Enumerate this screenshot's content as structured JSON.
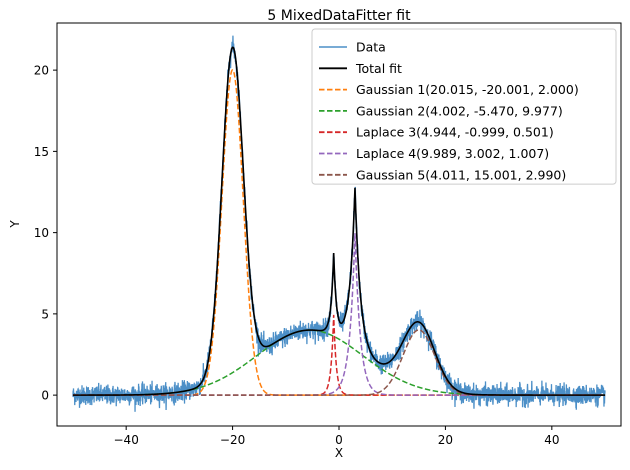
{
  "chart_data": {
    "type": "line",
    "title": "5 MixedDataFitter fit",
    "xlabel": "X",
    "ylabel": "Y",
    "xlim": [
      -53,
      53
    ],
    "ylim": [
      -1.9,
      22.9
    ],
    "xticks": [
      -40,
      -20,
      0,
      20,
      40
    ],
    "yticks": [
      0,
      5,
      10,
      15,
      20
    ],
    "grid": false,
    "legend_position": "top-right",
    "x_range": [
      -50,
      50
    ],
    "noise_amplitude": 0.3,
    "components": [
      {
        "kind": "gaussian",
        "amplitude": 20.015,
        "center": -20.001,
        "width": 2.0
      },
      {
        "kind": "gaussian",
        "amplitude": 4.002,
        "center": -5.47,
        "width": 9.977
      },
      {
        "kind": "laplace",
        "amplitude": 4.944,
        "center": -0.999,
        "width": 0.501
      },
      {
        "kind": "laplace",
        "amplitude": 9.989,
        "center": 3.002,
        "width": 1.007
      },
      {
        "kind": "gaussian",
        "amplitude": 4.011,
        "center": 15.001,
        "width": 2.99
      }
    ],
    "series": [
      {
        "name": "Data",
        "color": "#4c8fc7",
        "style": "solid"
      },
      {
        "name": "Total fit",
        "color": "#000000",
        "style": "solid"
      },
      {
        "name": "Gaussian 1(20.015, -20.001, 2.000)",
        "color": "#ff7f0e",
        "style": "dashed"
      },
      {
        "name": "Gaussian 2(4.002, -5.470, 9.977)",
        "color": "#2ca02c",
        "style": "dashed"
      },
      {
        "name": "Laplace 3(4.944, -0.999, 0.501)",
        "color": "#d62728",
        "style": "dashed"
      },
      {
        "name": "Laplace 4(9.989, 3.002, 1.007)",
        "color": "#9467bd",
        "style": "dashed"
      },
      {
        "name": "Gaussian 5(4.011, 15.001, 2.990)",
        "color": "#8c564b",
        "style": "dashed"
      }
    ]
  }
}
